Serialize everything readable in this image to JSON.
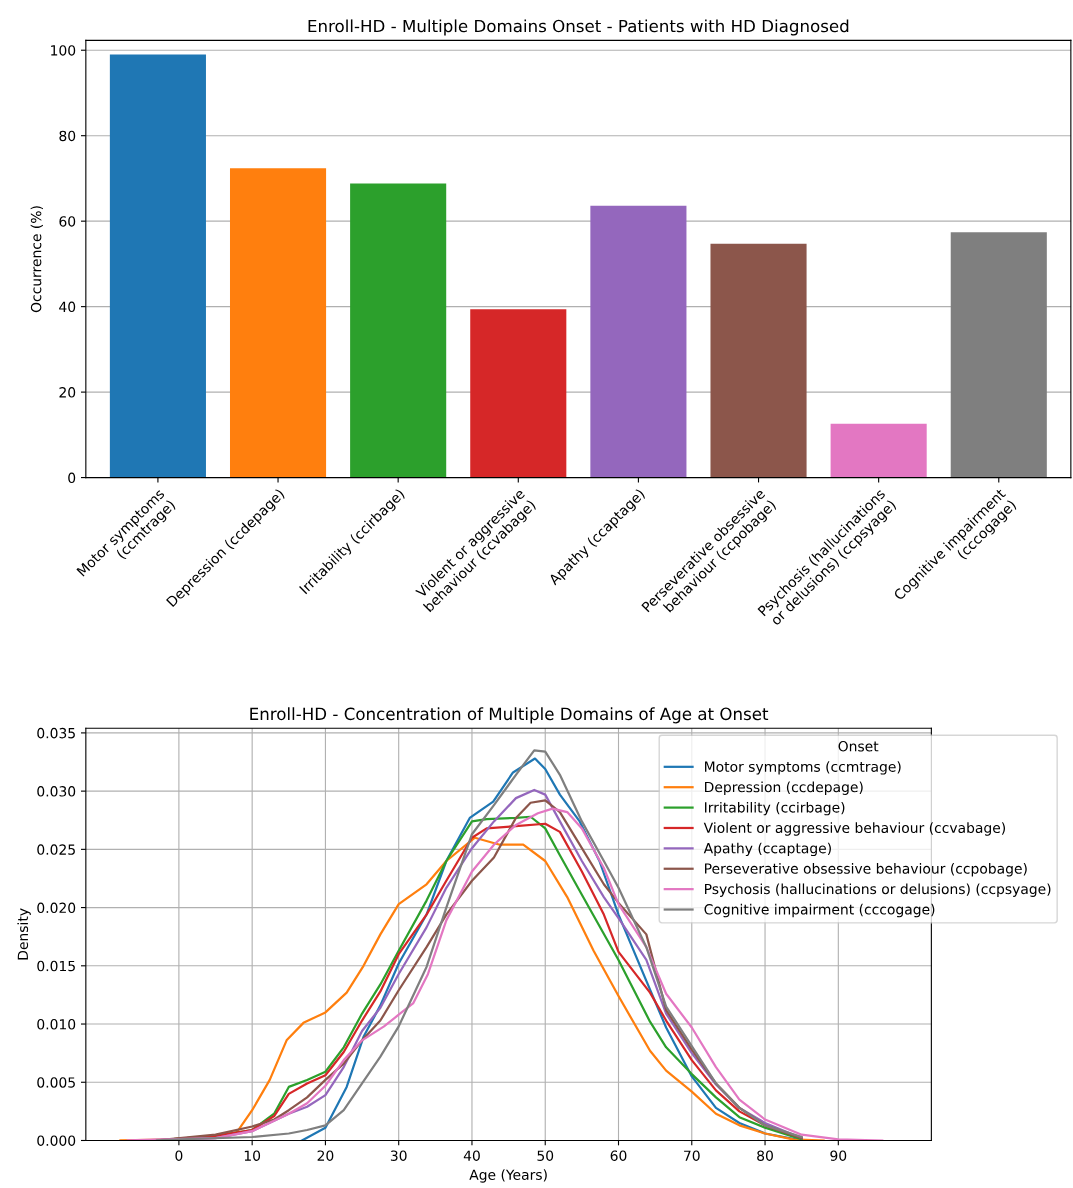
{
  "chart_data": [
    {
      "type": "bar",
      "title": "Enroll-HD - Multiple Domains Onset - Patients with HD Diagnosed",
      "ylabel": "Occurrence (%)",
      "categories": [
        "Motor symptoms\n(ccmtrage)",
        "Depression (ccdepage)",
        "Irritability (ccirbage)",
        "Violent or aggressive\nbehaviour (ccvabage)",
        "Apathy (ccaptage)",
        "Perseverative obsessive\nbehaviour (ccpobage)",
        "Psychosis (hallucinations\nor delusions) (ccpsyage)",
        "Cognitive impairment\n(cccogage)"
      ],
      "values": [
        99,
        72.4,
        68.8,
        39.4,
        63.6,
        54.7,
        12.6,
        57.4
      ],
      "colors": [
        "#1f77b4",
        "#ff7f0e",
        "#2ca02c",
        "#d62728",
        "#9467bd",
        "#8c564b",
        "#e377c2",
        "#7f7f7f"
      ],
      "ylim": [
        0,
        102.3
      ],
      "yticks": [
        0,
        20,
        40,
        60,
        80,
        100
      ],
      "grid": "y"
    },
    {
      "type": "line",
      "title": "Enroll-HD - Concentration of Multiple Domains of Age at Onset",
      "xlabel": "Age (Years)",
      "ylabel": "Density",
      "legend_title": "Onset",
      "xlim": [
        -12.7,
        102.7
      ],
      "ylim": [
        0,
        0.0354
      ],
      "xticks": [
        0,
        10,
        20,
        30,
        40,
        50,
        60,
        70,
        80,
        90
      ],
      "yticks": [
        {
          "value": 0,
          "label": "0.000"
        },
        {
          "value": 0.005,
          "label": "0.005"
        },
        {
          "value": 0.01,
          "label": "0.010"
        },
        {
          "value": 0.015,
          "label": "0.015"
        },
        {
          "value": 0.02,
          "label": "0.020"
        },
        {
          "value": 0.025,
          "label": "0.025"
        },
        {
          "value": 0.03,
          "label": "0.030"
        },
        {
          "value": 0.035,
          "label": "0.035"
        }
      ],
      "grid": true,
      "legend": "top right",
      "series": [
        {
          "name": "Motor symptoms (ccmtrage)",
          "color": "#1f77b4",
          "x": [
            16.8,
            20,
            22.9,
            25.2,
            27.5,
            30,
            33.8,
            36.5,
            39.7,
            42.9,
            45.6,
            48.6,
            50,
            52,
            54.7,
            57.4,
            60,
            63.8,
            66.5,
            70,
            73.3,
            76.5,
            80,
            85
          ],
          "values": [
            0,
            0.0011,
            0.0046,
            0.0089,
            0.0116,
            0.0152,
            0.0194,
            0.024,
            0.0277,
            0.0291,
            0.0316,
            0.0328,
            0.0319,
            0.0297,
            0.0274,
            0.024,
            0.0194,
            0.0137,
            0.0097,
            0.0055,
            0.0028,
            0.0015,
            0.0006,
            0
          ]
        },
        {
          "name": "Depression (ccdepage)",
          "color": "#ff7f0e",
          "x": [
            -8,
            0,
            5,
            7.9,
            10,
            12.4,
            14.7,
            17,
            20,
            22.9,
            25.2,
            27.5,
            30,
            33.8,
            36.5,
            40.4,
            43.8,
            47,
            50,
            53,
            56.6,
            60,
            64.3,
            66.5,
            70,
            73.3,
            76.5,
            80,
            83.8,
            88
          ],
          "values": [
            0,
            0.0001,
            0.0004,
            0.0007,
            0.0026,
            0.0052,
            0.0086,
            0.0101,
            0.011,
            0.0127,
            0.015,
            0.0177,
            0.0203,
            0.022,
            0.024,
            0.026,
            0.0254,
            0.0254,
            0.024,
            0.0209,
            0.0163,
            0.0124,
            0.0077,
            0.006,
            0.0042,
            0.0023,
            0.0013,
            0.0006,
            0.0001,
            0
          ]
        },
        {
          "name": "Irritability (ccirbage)",
          "color": "#2ca02c",
          "x": [
            -3,
            5,
            10,
            13,
            15,
            17.5,
            20,
            22.5,
            25,
            27.5,
            30,
            33.8,
            36.5,
            40,
            42,
            46,
            48,
            50,
            52,
            55,
            60,
            64.3,
            66.5,
            70,
            73.3,
            76.5,
            80,
            85
          ],
          "values": [
            0,
            0.0004,
            0.0009,
            0.0023,
            0.0046,
            0.0052,
            0.0059,
            0.008,
            0.0109,
            0.0134,
            0.0163,
            0.0206,
            0.024,
            0.0274,
            0.0276,
            0.0277,
            0.0278,
            0.0268,
            0.0245,
            0.0211,
            0.0155,
            0.0102,
            0.008,
            0.0057,
            0.0037,
            0.002,
            0.0011,
            0.0001
          ]
        },
        {
          "name": "Violent or aggressive behaviour (ccvabage)",
          "color": "#d62728",
          "x": [
            -3,
            5,
            10,
            13,
            15,
            17.5,
            20,
            22.5,
            25,
            27.5,
            30,
            33.8,
            36.5,
            40,
            42,
            46,
            50,
            52,
            55,
            58,
            60,
            64.3,
            66.5,
            70,
            73.3,
            76.5,
            80,
            85
          ],
          "values": [
            0,
            0.0004,
            0.0009,
            0.0021,
            0.004,
            0.0049,
            0.0056,
            0.0076,
            0.0103,
            0.0128,
            0.016,
            0.0194,
            0.0223,
            0.026,
            0.0268,
            0.027,
            0.0272,
            0.0265,
            0.0231,
            0.0194,
            0.0162,
            0.0127,
            0.0103,
            0.0069,
            0.0043,
            0.0025,
            0.0013,
            0.0002
          ]
        },
        {
          "name": "Apathy (ccaptage)",
          "color": "#9467bd",
          "x": [
            -5,
            5,
            10,
            15,
            17.5,
            20,
            22.5,
            25,
            27.5,
            30,
            33.8,
            36.5,
            40,
            43,
            46,
            48.5,
            50,
            52,
            55,
            58,
            60,
            63.8,
            66.5,
            70,
            73.3,
            76.5,
            80,
            85
          ],
          "values": [
            0,
            0.0002,
            0.0008,
            0.0023,
            0.0029,
            0.0039,
            0.0063,
            0.0094,
            0.0114,
            0.0143,
            0.0183,
            0.0217,
            0.0251,
            0.0274,
            0.0294,
            0.0301,
            0.0297,
            0.0274,
            0.024,
            0.0209,
            0.0191,
            0.0155,
            0.0109,
            0.0075,
            0.0048,
            0.0028,
            0.0015,
            0.0002
          ]
        },
        {
          "name": "Perseverative obsessive behaviour (ccpobage)",
          "color": "#8c564b",
          "x": [
            -3,
            5,
            10,
            13,
            15,
            17.5,
            20,
            22.5,
            25,
            27.5,
            30,
            33.8,
            36.5,
            40,
            43,
            46,
            48,
            50,
            52,
            55,
            58,
            60,
            63.8,
            66.5,
            70,
            73.3,
            76.5,
            80,
            85
          ],
          "values": [
            0,
            0.0005,
            0.0012,
            0.0018,
            0.0026,
            0.0037,
            0.0052,
            0.0066,
            0.0086,
            0.0103,
            0.0129,
            0.0166,
            0.0194,
            0.0223,
            0.0243,
            0.0277,
            0.029,
            0.0292,
            0.0282,
            0.0251,
            0.022,
            0.0204,
            0.0177,
            0.0112,
            0.0078,
            0.0049,
            0.0028,
            0.0013,
            0.0002
          ]
        },
        {
          "name": "Psychosis (hallucinations or delusions) (ccpsyage)",
          "color": "#e377c2",
          "x": [
            -7,
            5,
            10,
            15,
            17.5,
            20,
            22.5,
            25,
            28,
            30,
            32,
            34,
            36.5,
            40,
            43,
            46,
            49,
            51,
            53,
            55,
            58,
            60,
            63.8,
            66.5,
            70,
            73.3,
            76.5,
            80,
            85,
            90,
            96
          ],
          "values": [
            0,
            0.0002,
            0.0008,
            0.0023,
            0.0032,
            0.0047,
            0.0069,
            0.0086,
            0.0098,
            0.0108,
            0.0118,
            0.0143,
            0.0189,
            0.0231,
            0.0254,
            0.0271,
            0.0281,
            0.0285,
            0.0282,
            0.0268,
            0.0234,
            0.0203,
            0.0166,
            0.0126,
            0.0097,
            0.0063,
            0.0035,
            0.0018,
            0.0005,
            0.0001,
            0
          ]
        },
        {
          "name": "Cognitive impairment (cccogage)",
          "color": "#7f7f7f",
          "x": [
            -3,
            0,
            10,
            15,
            17.5,
            20,
            22.5,
            25,
            27.5,
            30,
            33.8,
            36.5,
            40,
            43,
            46,
            48.5,
            50,
            52,
            55,
            58,
            60,
            63.8,
            66.5,
            70,
            73.3,
            76.5,
            80,
            85
          ],
          "values": [
            0,
            0.0001,
            0.0003,
            0.0006,
            0.0009,
            0.0013,
            0.0026,
            0.0049,
            0.0072,
            0.0098,
            0.0149,
            0.02,
            0.0263,
            0.0288,
            0.0314,
            0.0335,
            0.0334,
            0.0314,
            0.0274,
            0.024,
            0.0217,
            0.0166,
            0.0115,
            0.0081,
            0.0049,
            0.0028,
            0.0013,
            0.0003
          ]
        }
      ]
    }
  ]
}
